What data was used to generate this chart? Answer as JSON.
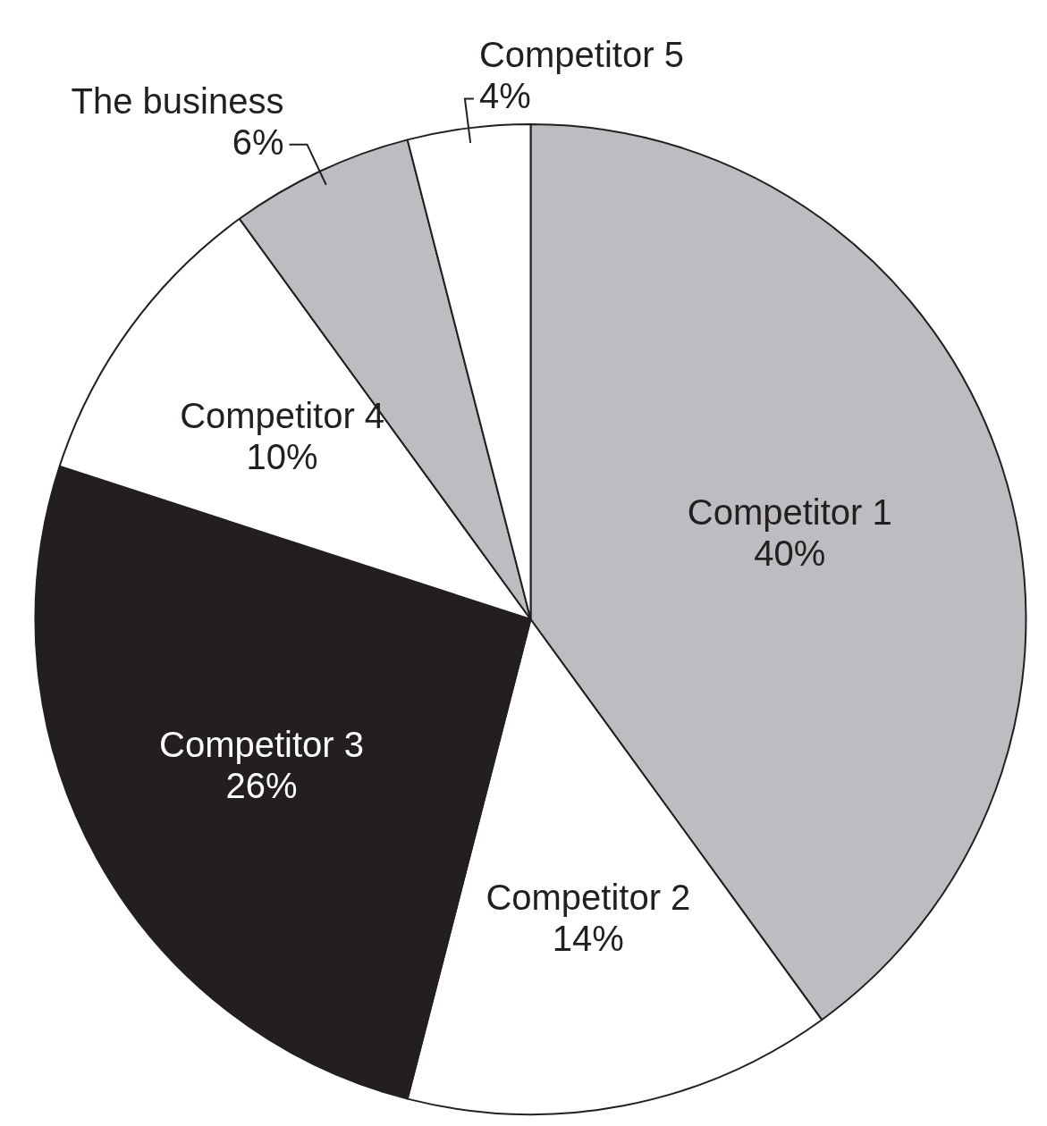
{
  "chart_data": {
    "type": "pie",
    "categories": [
      "Competitor 1",
      "Competitor 2",
      "Competitor 3",
      "Competitor 4",
      "The business",
      "Competitor 5"
    ],
    "values": [
      40,
      14,
      26,
      10,
      6,
      4
    ],
    "colors": [
      "#bcbdc0",
      "#ffffff",
      "#231f20",
      "#ffffff",
      "#bcbdc0",
      "#ffffff"
    ],
    "value_labels": [
      "40%",
      "14%",
      "26%",
      "10%",
      "6%",
      "4%"
    ],
    "legend": false
  }
}
